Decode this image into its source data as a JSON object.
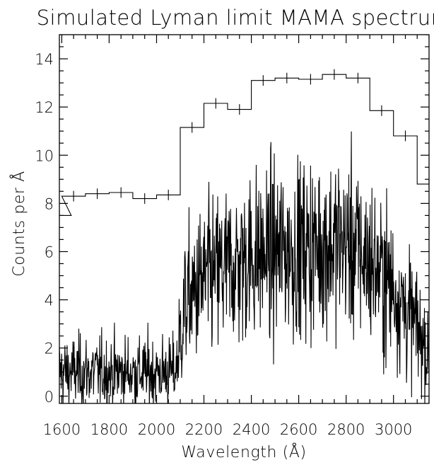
{
  "chart_data": {
    "type": "line",
    "title": "Simulated Lyman limit MAMA spectrum",
    "xlabel": "Wavelength (Å)",
    "ylabel": "Counts per Å",
    "xlim": [
      1590,
      3150
    ],
    "ylim": [
      -0.3,
      15
    ],
    "x_ticks": [
      1600,
      1800,
      2000,
      2200,
      2400,
      2600,
      2800,
      3000
    ],
    "x_minor_step": 50,
    "y_ticks": [
      0,
      2,
      4,
      6,
      8,
      10,
      12,
      14
    ],
    "y_minor_step": 0.5,
    "grid": false,
    "series": [
      {
        "style": "histogram-with-errorbars",
        "bin_width": 100,
        "bins": [
          {
            "x": 1590,
            "y": 7.5
          },
          {
            "x": 1650,
            "y": 8.3
          },
          {
            "x": 1750,
            "y": 8.4
          },
          {
            "x": 1850,
            "y": 8.45
          },
          {
            "x": 1950,
            "y": 8.2
          },
          {
            "x": 2050,
            "y": 8.35
          },
          {
            "x": 2150,
            "y": 11.15
          },
          {
            "x": 2250,
            "y": 12.15
          },
          {
            "x": 2350,
            "y": 11.9
          },
          {
            "x": 2450,
            "y": 13.1
          },
          {
            "x": 2550,
            "y": 13.2
          },
          {
            "x": 2650,
            "y": 13.15
          },
          {
            "x": 2750,
            "y": 13.35
          },
          {
            "x": 2850,
            "y": 13.2
          },
          {
            "x": 2950,
            "y": 11.85
          },
          {
            "x": 3050,
            "y": 10.8
          },
          {
            "x": 3150,
            "y": 8.8
          }
        ],
        "error": 0.22
      },
      {
        "style": "noisy-line",
        "envelope": [
          {
            "x": 1590,
            "y": 1.0
          },
          {
            "x": 2080,
            "y": 1.0
          },
          {
            "x": 2120,
            "y": 3.8
          },
          {
            "x": 2200,
            "y": 4.8
          },
          {
            "x": 2400,
            "y": 5.8
          },
          {
            "x": 2600,
            "y": 6.1
          },
          {
            "x": 2800,
            "y": 6.4
          },
          {
            "x": 2900,
            "y": 5.6
          },
          {
            "x": 3000,
            "y": 4.5
          },
          {
            "x": 3100,
            "y": 2.8
          },
          {
            "x": 3150,
            "y": 1.6
          }
        ]
      }
    ]
  }
}
